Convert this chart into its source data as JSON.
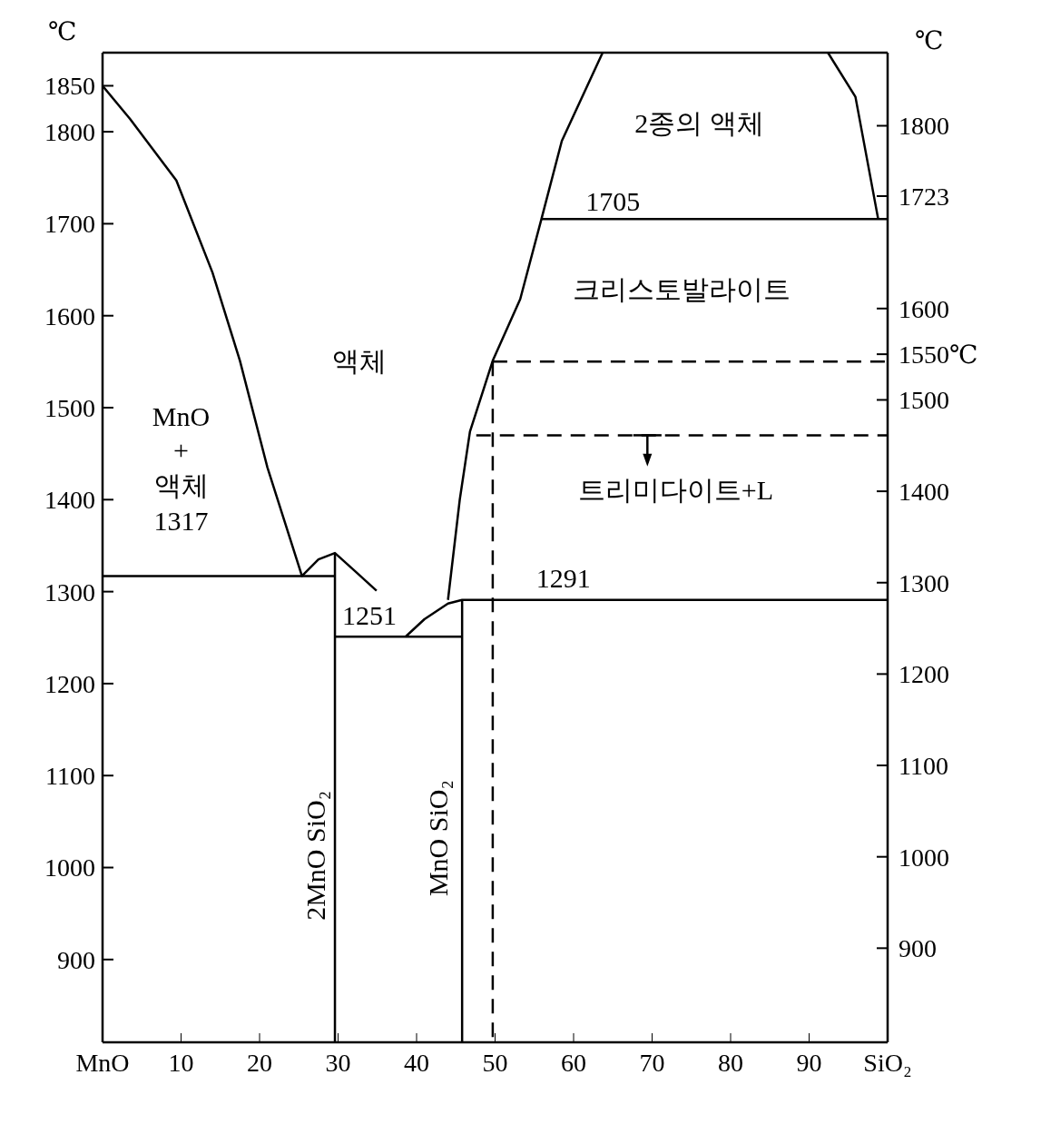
{
  "chart_data": {
    "type": "line",
    "ylabel": "℃",
    "y2label": "℃",
    "xlim": [
      0,
      100
    ],
    "xticks": [
      {
        "value": 0,
        "label": "MnO"
      },
      10,
      20,
      30,
      40,
      50,
      60,
      70,
      80,
      90,
      {
        "value": 100,
        "label": "SiO₂"
      }
    ],
    "ylim": [
      810,
      1886
    ],
    "yticks": [
      900,
      1000,
      1100,
      1200,
      1300,
      1400,
      1500,
      1600,
      1700,
      1800,
      1850
    ],
    "y2lim": [
      797,
      1880
    ],
    "y2ticks": [
      900,
      1000,
      1100,
      1200,
      1300,
      1400,
      1500,
      {
        "value": 1550,
        "label": "1550℃"
      },
      1600,
      1723,
      1800
    ],
    "marker": "none",
    "series": [
      {
        "color": "#000000",
        "x": [
          0,
          3.5,
          9.4,
          14,
          17.5,
          21,
          25.4,
          27.5,
          29.6,
          32.2,
          34.9
        ],
        "values": [
          1850,
          1814,
          1747,
          1647,
          1551,
          1435,
          1317,
          1335,
          1342,
          1322,
          1301
        ]
      },
      {
        "color": "#000000",
        "x": [
          0,
          29.6
        ],
        "values": [
          1317,
          1317
        ]
      },
      {
        "color": "#000000",
        "x": [
          29.6,
          29.6
        ],
        "values": [
          1342,
          810
        ]
      },
      {
        "color": "#000000",
        "x": [
          29.6,
          45.8
        ],
        "values": [
          1251,
          1251
        ]
      },
      {
        "color": "#000000",
        "x": [
          38.6,
          41,
          44,
          45.8,
          100
        ],
        "values": [
          1251,
          1270,
          1287,
          1291,
          1291
        ]
      },
      {
        "color": "#000000",
        "x": [
          45.8,
          45.8
        ],
        "values": [
          1291,
          810
        ]
      },
      {
        "color": "#000000",
        "x": [
          44,
          45.5,
          46.8,
          49.7,
          53.2,
          55.9,
          58.5,
          63.7
        ],
        "values": [
          1291,
          1400,
          1474,
          1551,
          1618,
          1705,
          1790,
          1886
        ]
      },
      {
        "color": "#000000",
        "x": [
          55.9,
          100
        ],
        "values": [
          1705,
          1705
        ]
      },
      {
        "color": "#000000",
        "x": [
          92.4,
          95.9,
          98.8
        ],
        "values": [
          1886,
          1838,
          1705
        ]
      },
      {
        "color": "#000000",
        "line_style": "dashed",
        "x": [
          49.7,
          100
        ],
        "values": [
          1550,
          1550
        ]
      },
      {
        "color": "#000000",
        "line_style": "dashed",
        "x": [
          49.7,
          49.7
        ],
        "values": [
          1550,
          810
        ]
      },
      {
        "color": "#000000",
        "line_style": "dashed",
        "x": [
          47.6,
          100
        ],
        "values": [
          1470,
          1470
        ]
      }
    ],
    "annotations": [
      "2종의 액체",
      "1705",
      "크리스토발라이트",
      "액체",
      "MnO",
      "+",
      "액체",
      "1317",
      "1251",
      "1291",
      "트리미다이트+L",
      "2MnO SiO₂",
      "MnO SiO₂"
    ]
  }
}
